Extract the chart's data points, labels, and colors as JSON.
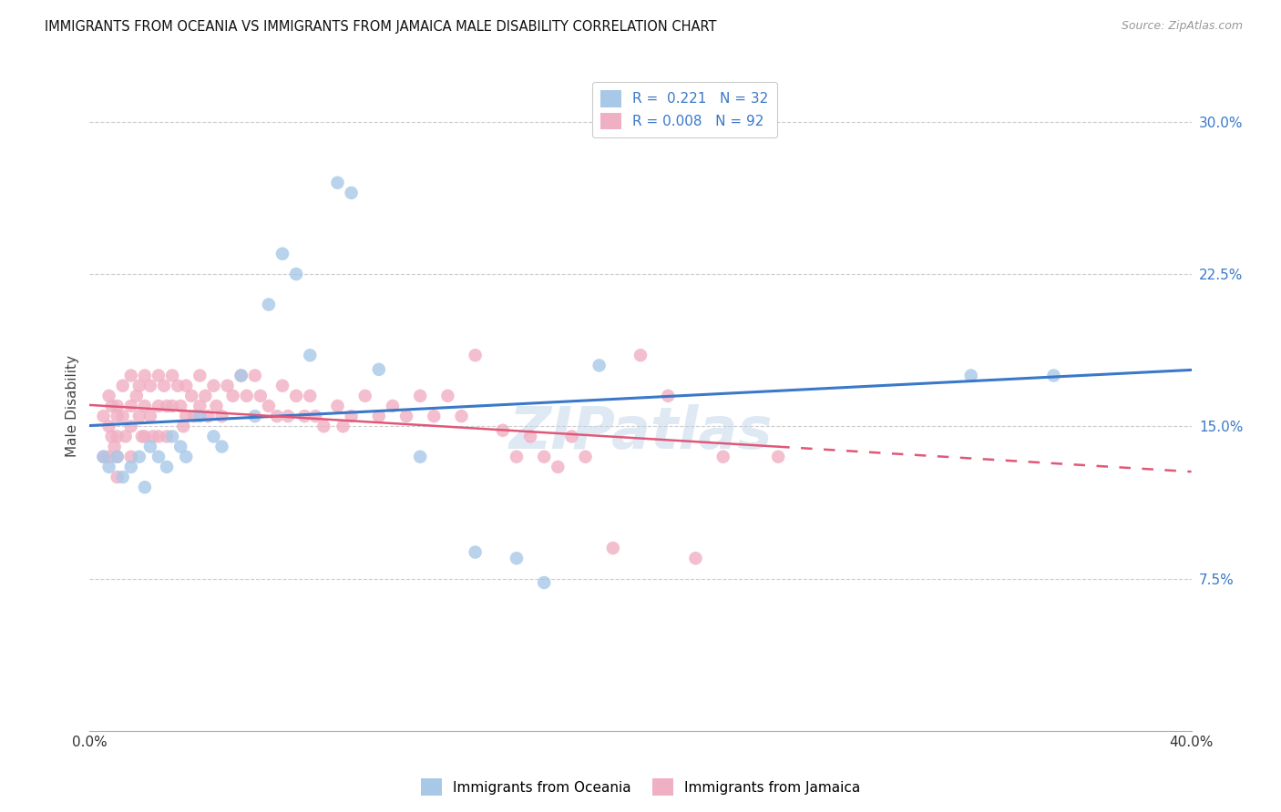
{
  "title": "IMMIGRANTS FROM OCEANIA VS IMMIGRANTS FROM JAMAICA MALE DISABILITY CORRELATION CHART",
  "source": "Source: ZipAtlas.com",
  "ylabel": "Male Disability",
  "xlim": [
    0.0,
    0.4
  ],
  "ylim": [
    0.0,
    0.32
  ],
  "yticks": [
    0.075,
    0.15,
    0.225,
    0.3
  ],
  "ytick_labels": [
    "7.5%",
    "15.0%",
    "22.5%",
    "30.0%"
  ],
  "color_oceania": "#a8c8e8",
  "color_jamaica": "#f0b0c4",
  "color_line_oceania": "#3a78c9",
  "color_line_jamaica": "#e05878",
  "legend_r1": "R =  0.221",
  "legend_n1": "N = 32",
  "legend_r2": "R = 0.008",
  "legend_n2": "N = 92",
  "label_oceania": "Immigrants from Oceania",
  "label_jamaica": "Immigrants from Jamaica",
  "oceania_x": [
    0.005,
    0.007,
    0.01,
    0.012,
    0.015,
    0.018,
    0.02,
    0.022,
    0.025,
    0.028,
    0.03,
    0.033,
    0.035,
    0.04,
    0.045,
    0.048,
    0.055,
    0.06,
    0.065,
    0.07,
    0.075,
    0.08,
    0.09,
    0.095,
    0.105,
    0.12,
    0.14,
    0.155,
    0.165,
    0.185,
    0.32,
    0.35
  ],
  "oceania_y": [
    0.135,
    0.13,
    0.135,
    0.125,
    0.13,
    0.135,
    0.12,
    0.14,
    0.135,
    0.13,
    0.145,
    0.14,
    0.135,
    0.155,
    0.145,
    0.14,
    0.175,
    0.155,
    0.21,
    0.235,
    0.225,
    0.185,
    0.27,
    0.265,
    0.178,
    0.135,
    0.088,
    0.085,
    0.073,
    0.18,
    0.175,
    0.175
  ],
  "jamaica_x": [
    0.005,
    0.005,
    0.007,
    0.007,
    0.007,
    0.008,
    0.008,
    0.009,
    0.01,
    0.01,
    0.01,
    0.01,
    0.01,
    0.012,
    0.012,
    0.013,
    0.015,
    0.015,
    0.015,
    0.015,
    0.017,
    0.018,
    0.018,
    0.019,
    0.02,
    0.02,
    0.02,
    0.022,
    0.022,
    0.023,
    0.025,
    0.025,
    0.025,
    0.027,
    0.028,
    0.028,
    0.03,
    0.03,
    0.032,
    0.033,
    0.034,
    0.035,
    0.035,
    0.037,
    0.038,
    0.04,
    0.04,
    0.042,
    0.043,
    0.045,
    0.046,
    0.048,
    0.05,
    0.052,
    0.055,
    0.057,
    0.06,
    0.062,
    0.065,
    0.068,
    0.07,
    0.072,
    0.075,
    0.078,
    0.08,
    0.082,
    0.085,
    0.09,
    0.092,
    0.095,
    0.1,
    0.105,
    0.11,
    0.115,
    0.12,
    0.125,
    0.13,
    0.135,
    0.14,
    0.15,
    0.155,
    0.16,
    0.165,
    0.17,
    0.175,
    0.18,
    0.19,
    0.2,
    0.21,
    0.22,
    0.23,
    0.25
  ],
  "jamaica_y": [
    0.155,
    0.135,
    0.165,
    0.15,
    0.135,
    0.16,
    0.145,
    0.14,
    0.16,
    0.155,
    0.145,
    0.135,
    0.125,
    0.17,
    0.155,
    0.145,
    0.175,
    0.16,
    0.15,
    0.135,
    0.165,
    0.17,
    0.155,
    0.145,
    0.175,
    0.16,
    0.145,
    0.17,
    0.155,
    0.145,
    0.175,
    0.16,
    0.145,
    0.17,
    0.16,
    0.145,
    0.175,
    0.16,
    0.17,
    0.16,
    0.15,
    0.17,
    0.155,
    0.165,
    0.155,
    0.175,
    0.16,
    0.165,
    0.155,
    0.17,
    0.16,
    0.155,
    0.17,
    0.165,
    0.175,
    0.165,
    0.175,
    0.165,
    0.16,
    0.155,
    0.17,
    0.155,
    0.165,
    0.155,
    0.165,
    0.155,
    0.15,
    0.16,
    0.15,
    0.155,
    0.165,
    0.155,
    0.16,
    0.155,
    0.165,
    0.155,
    0.165,
    0.155,
    0.185,
    0.148,
    0.135,
    0.145,
    0.135,
    0.13,
    0.145,
    0.135,
    0.09,
    0.185,
    0.165,
    0.085,
    0.135,
    0.135
  ]
}
